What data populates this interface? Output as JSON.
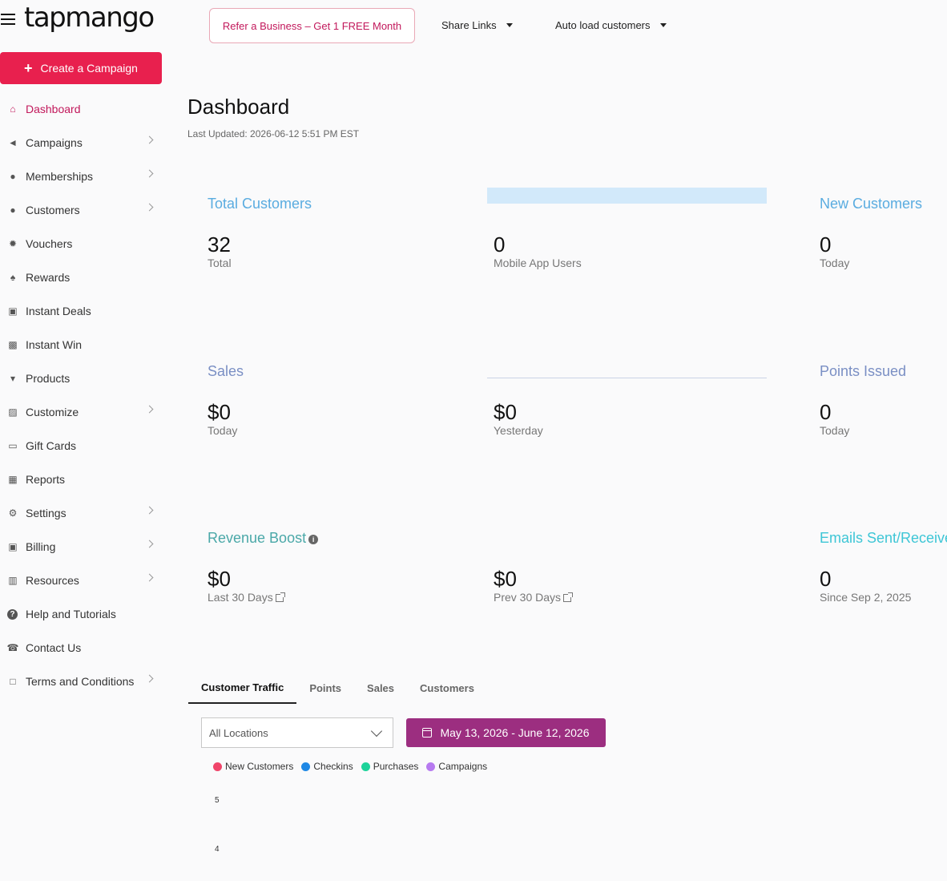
{
  "app": {
    "logo_text": "tapmango",
    "refer_label": "Refer a Business – Get 1 FREE Month",
    "share_links_label": "Share Links",
    "auto_load_label": "Auto load customers",
    "create_campaign_label": "Create a Campaign"
  },
  "sidebar": {
    "items": [
      {
        "label": "Dashboard",
        "icon": "home-icon",
        "active": true,
        "has_children": false
      },
      {
        "label": "Campaigns",
        "icon": "megaphone-icon",
        "has_children": true
      },
      {
        "label": "Memberships",
        "icon": "users-icon",
        "has_children": true
      },
      {
        "label": "Customers",
        "icon": "users-icon",
        "has_children": true
      },
      {
        "label": "Vouchers",
        "icon": "certificate-icon",
        "has_children": false
      },
      {
        "label": "Rewards",
        "icon": "trophy-icon",
        "has_children": false
      },
      {
        "label": "Instant Deals",
        "icon": "money-icon",
        "has_children": false
      },
      {
        "label": "Instant Win",
        "icon": "gift-icon",
        "has_children": false
      },
      {
        "label": "Products",
        "icon": "cart-icon",
        "has_children": false
      },
      {
        "label": "Customize",
        "icon": "image-icon",
        "has_children": true
      },
      {
        "label": "Gift Cards",
        "icon": "card-icon",
        "has_children": false
      },
      {
        "label": "Reports",
        "icon": "table-icon",
        "has_children": false
      },
      {
        "label": "Settings",
        "icon": "gear-icon",
        "has_children": true
      },
      {
        "label": "Billing",
        "icon": "money-icon",
        "has_children": true
      },
      {
        "label": "Resources",
        "icon": "book-icon",
        "has_children": true
      },
      {
        "label": "Help and Tutorials",
        "icon": "question-icon",
        "has_children": false
      },
      {
        "label": "Contact Us",
        "icon": "phone-icon",
        "has_children": false
      },
      {
        "label": "Terms and Conditions",
        "icon": "file-icon",
        "has_children": true
      }
    ]
  },
  "main": {
    "title": "Dashboard",
    "last_updated": "Last Updated: 2026-06-12 5:51 PM EST",
    "stats": {
      "total_customers": {
        "title": "Total Customers",
        "value": "32",
        "sub": "Total"
      },
      "mobile_users": {
        "value": "0",
        "sub": "Mobile App Users"
      },
      "new_customers": {
        "title": "New Customers",
        "value": "0",
        "sub": "Today"
      },
      "sales": {
        "title": "Sales",
        "value": "$0",
        "sub": "Today"
      },
      "sales_yesterday": {
        "value": "$0",
        "sub": "Yesterday"
      },
      "points_issued": {
        "title": "Points Issued",
        "value": "0",
        "sub": "Today"
      },
      "revenue_boost": {
        "title": "Revenue Boost",
        "value": "$0",
        "sub": "Last 30 Days"
      },
      "revenue_prev": {
        "value": "$0",
        "sub": "Prev 30 Days"
      },
      "emails": {
        "title": "Emails Sent/Received",
        "value": "0",
        "sub": "Since Sep 2, 2025"
      }
    },
    "colors": {
      "customers_title": "#5aace0",
      "sales_title": "#7a8fc4",
      "revenue_title": "#4aa8a8",
      "emails_title": "#3ec6d6"
    },
    "tabs": [
      "Customer Traffic",
      "Points",
      "Sales",
      "Customers"
    ],
    "location_select": "All Locations",
    "date_range": "May 13, 2026 - June 12, 2026",
    "legend": [
      {
        "label": "New Customers",
        "color": "#f0456a"
      },
      {
        "label": "Checkins",
        "color": "#1e88e5"
      },
      {
        "label": "Purchases",
        "color": "#1dd39a"
      },
      {
        "label": "Campaigns",
        "color": "#b77af0"
      }
    ],
    "y_ticks": [
      "5",
      "4"
    ]
  }
}
